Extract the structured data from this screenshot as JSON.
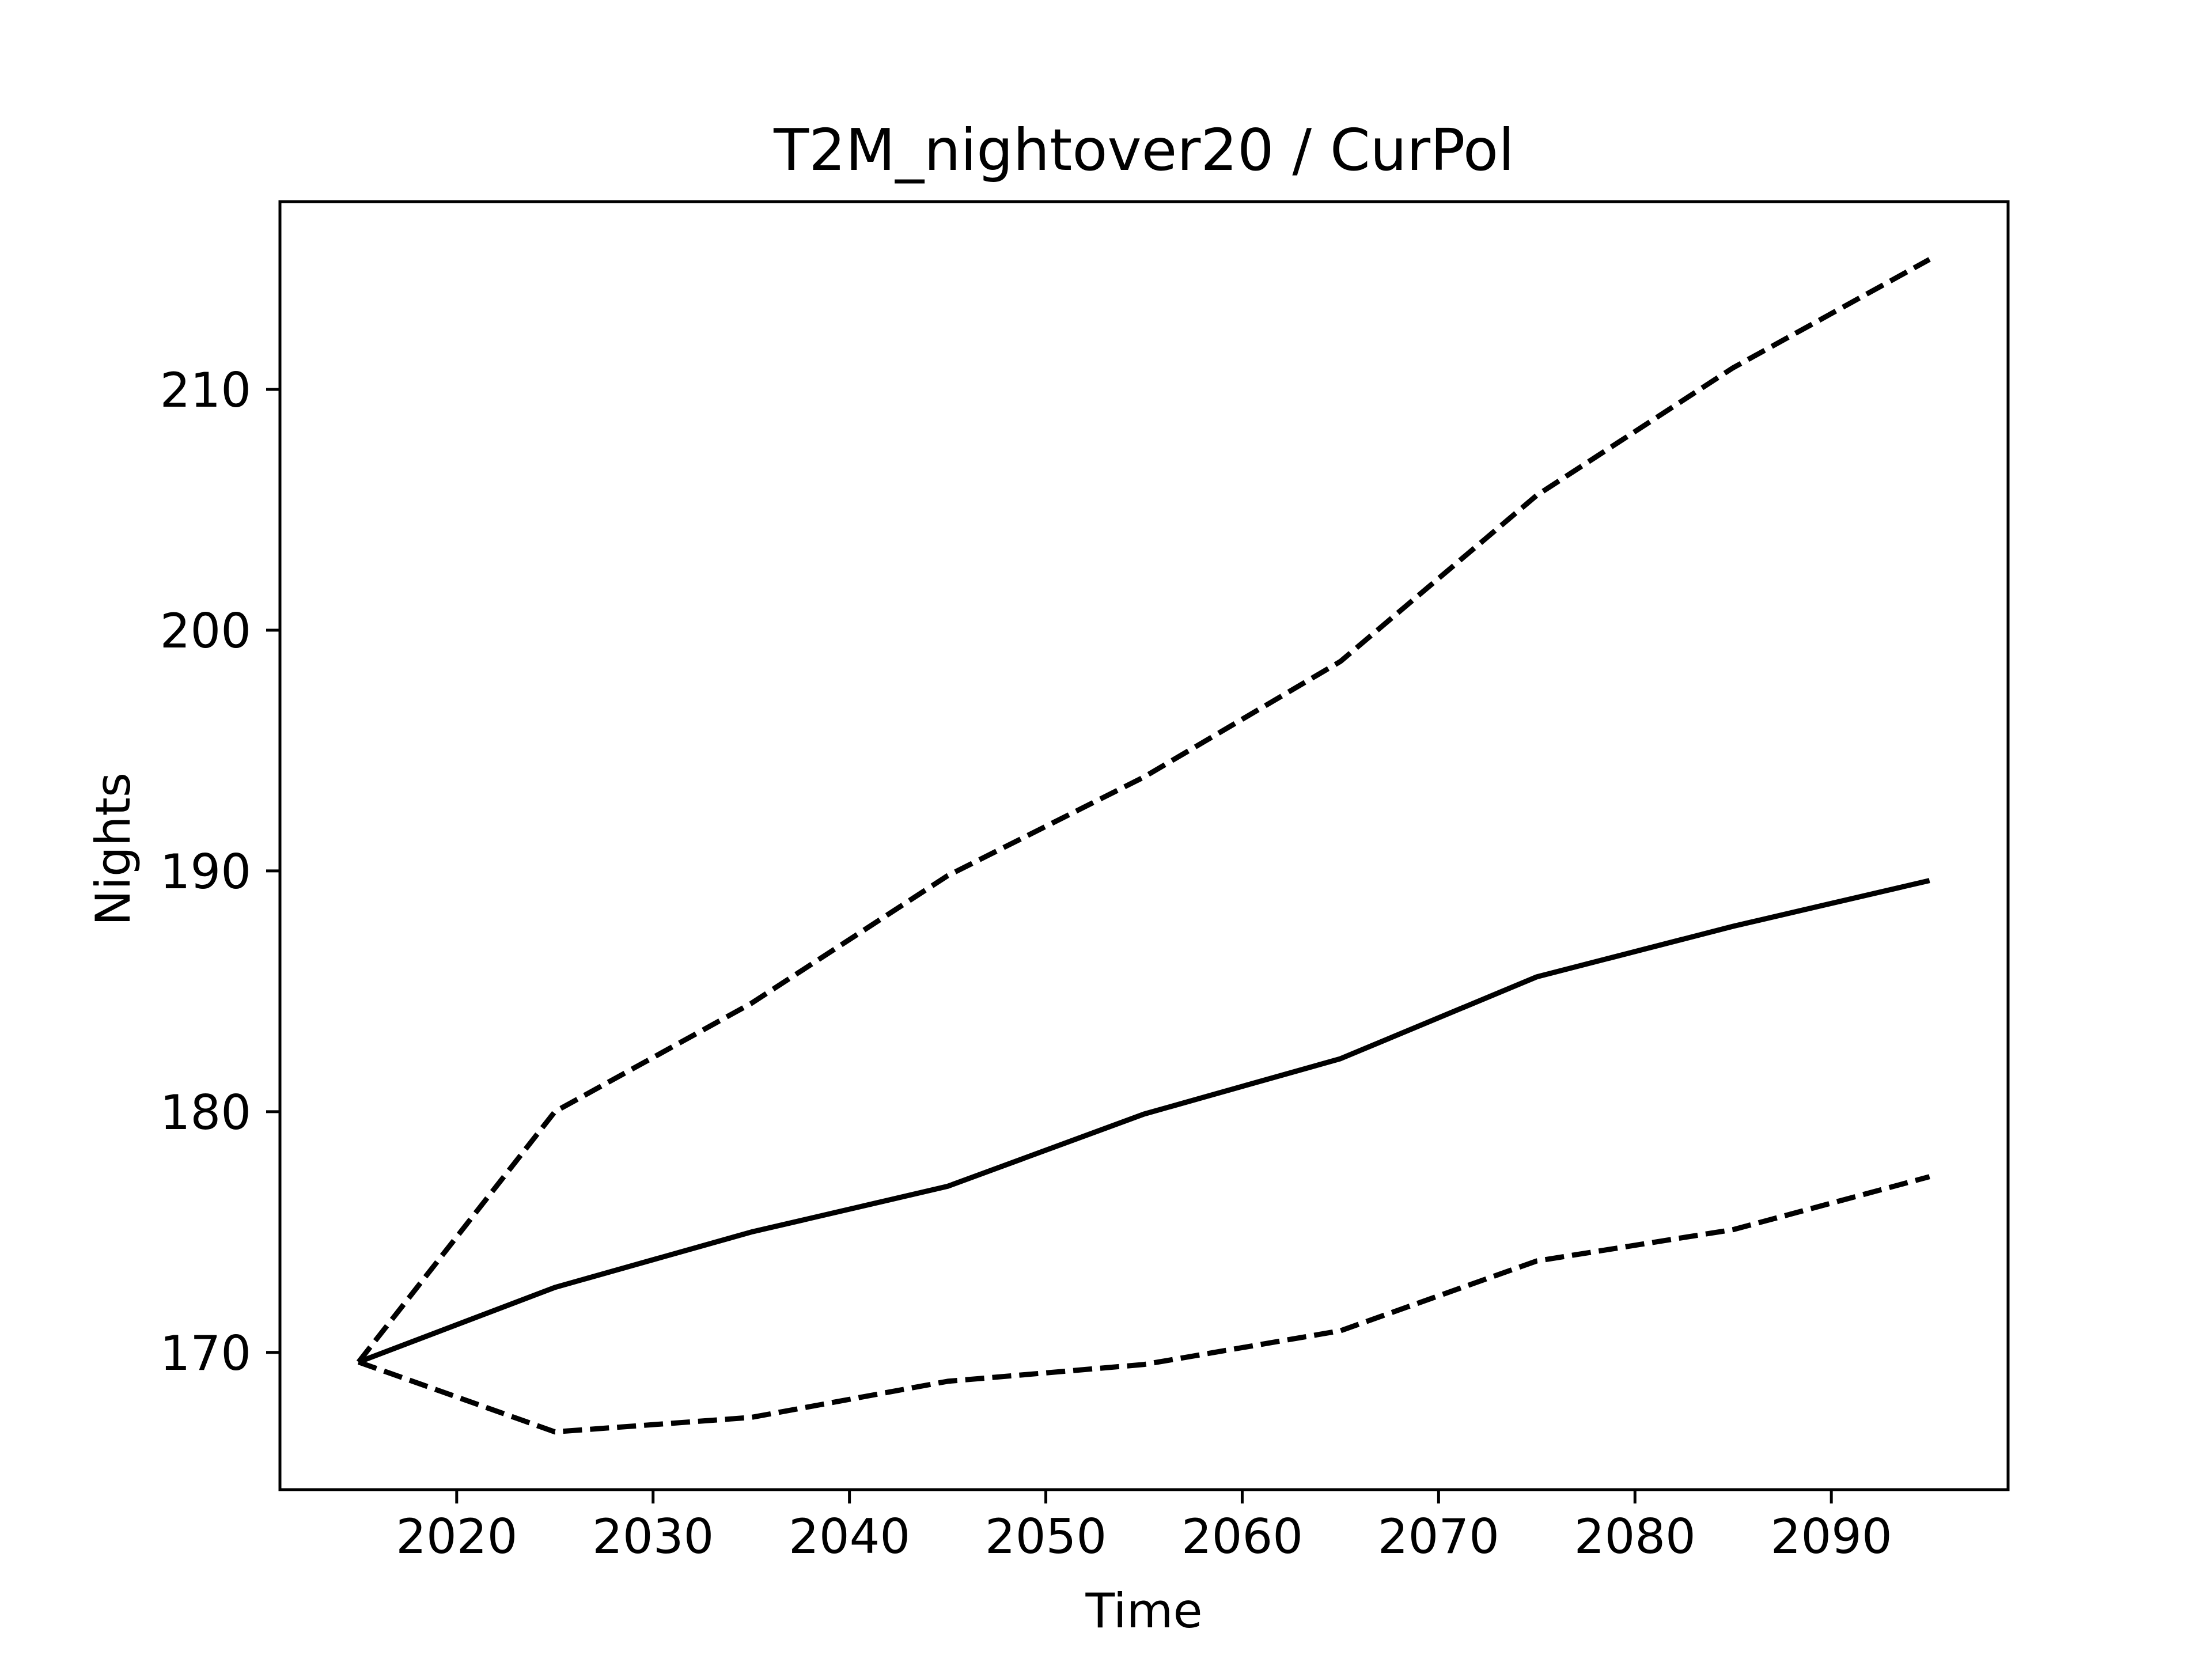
{
  "chart_data": {
    "type": "line",
    "title": "T2M_nightover20 / CurPol",
    "xlabel": "Time",
    "ylabel": "Nights",
    "xlim": [
      2011,
      2099
    ],
    "ylim": [
      164.3,
      217.8
    ],
    "x_ticks": [
      2020,
      2030,
      2040,
      2050,
      2060,
      2070,
      2080,
      2090
    ],
    "y_ticks": [
      170,
      180,
      190,
      200,
      210
    ],
    "x": [
      2015,
      2025,
      2035,
      2045,
      2055,
      2065,
      2075,
      2085,
      2095
    ],
    "grid": false,
    "legend": "none",
    "series": [
      {
        "style": "solid",
        "color": "#000000",
        "values": [
          169.6,
          172.7,
          175.0,
          176.9,
          179.9,
          182.2,
          185.6,
          187.7,
          189.6
        ]
      },
      {
        "style": "dashed",
        "color": "#000000",
        "values": [
          169.6,
          180.0,
          184.5,
          189.8,
          193.9,
          198.7,
          205.6,
          210.9,
          215.4
        ]
      },
      {
        "style": "dashed",
        "color": "#000000",
        "values": [
          169.6,
          166.7,
          167.3,
          168.8,
          169.5,
          170.9,
          173.8,
          175.1,
          177.3
        ]
      }
    ]
  }
}
